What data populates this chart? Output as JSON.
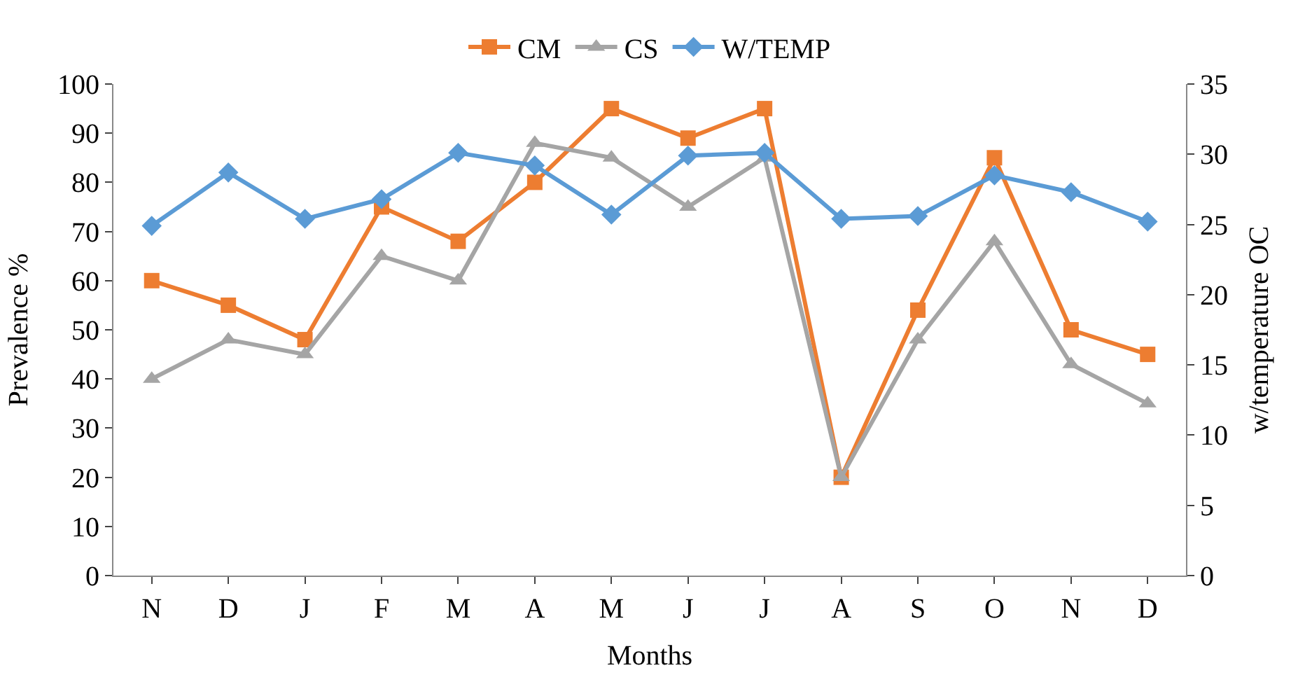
{
  "chart_data": {
    "type": "line",
    "xlabel": "Months",
    "ylabel": "Prevalence %",
    "y2label": "w/temperature OC",
    "categories": [
      "N",
      "D",
      "J",
      "F",
      "M",
      "A",
      "M",
      "J",
      "J",
      "A",
      "S",
      "O",
      "N",
      "D"
    ],
    "series": [
      {
        "name": "CM",
        "color": "#ed7d31",
        "marker": "square",
        "values": [
          60,
          55,
          48,
          75,
          68,
          80,
          95,
          89,
          95,
          20,
          54,
          85,
          50,
          45
        ]
      },
      {
        "name": "CS",
        "color": "#a5a5a5",
        "marker": "triangle",
        "values": [
          40,
          48,
          45,
          65,
          60,
          88,
          85,
          75,
          85,
          20,
          48,
          68,
          43,
          35
        ]
      },
      {
        "name": "W/TEMP",
        "color": "#5b9bd5",
        "marker": "diamond",
        "axis": "y2",
        "values": [
          24.9,
          28.7,
          25.4,
          26.8,
          30.1,
          29.2,
          25.7,
          29.9,
          30.1,
          25.4,
          25.6,
          28.5,
          27.3,
          25.2
        ]
      }
    ],
    "ylim": [
      0,
      100
    ],
    "yticks": [
      0,
      10,
      20,
      30,
      40,
      50,
      60,
      70,
      80,
      90,
      100
    ],
    "y2lim": [
      0,
      35
    ],
    "y2ticks": [
      0,
      5,
      10,
      15,
      20,
      25,
      30,
      35
    ],
    "legend": "top"
  }
}
